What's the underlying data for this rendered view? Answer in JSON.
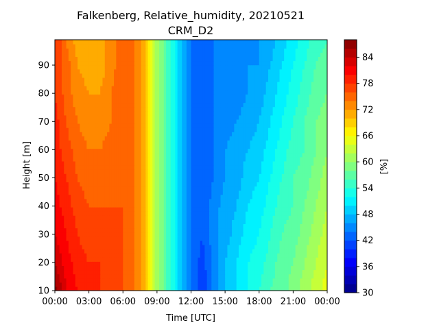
{
  "chart_data": {
    "type": "heatmap",
    "title": "Falkenberg, Relative_humidity, 20210521",
    "subtitle": "CRM_D2",
    "xlabel": "Time [UTC]",
    "ylabel": "Height [m]",
    "colorbar_label": "[%]",
    "colormap": "jet",
    "xlim": [
      0,
      24
    ],
    "ylim": [
      10,
      99
    ],
    "clim": [
      30,
      88
    ],
    "x_ticks": [
      {
        "value": 0,
        "label": "00:00"
      },
      {
        "value": 3,
        "label": "03:00"
      },
      {
        "value": 6,
        "label": "06:00"
      },
      {
        "value": 9,
        "label": "09:00"
      },
      {
        "value": 12,
        "label": "12:00"
      },
      {
        "value": 15,
        "label": "15:00"
      },
      {
        "value": 18,
        "label": "18:00"
      },
      {
        "value": 21,
        "label": "21:00"
      },
      {
        "value": 24,
        "label": "00:00"
      }
    ],
    "y_ticks": [
      {
        "value": 10,
        "label": "10"
      },
      {
        "value": 20,
        "label": "20"
      },
      {
        "value": 30,
        "label": "30"
      },
      {
        "value": 40,
        "label": "40"
      },
      {
        "value": 50,
        "label": "50"
      },
      {
        "value": 60,
        "label": "60"
      },
      {
        "value": 70,
        "label": "70"
      },
      {
        "value": 80,
        "label": "80"
      },
      {
        "value": 90,
        "label": "90"
      }
    ],
    "colorbar_ticks": [
      {
        "value": 30,
        "label": "30"
      },
      {
        "value": 36,
        "label": "36"
      },
      {
        "value": 42,
        "label": "42"
      },
      {
        "value": 48,
        "label": "48"
      },
      {
        "value": 54,
        "label": "54"
      },
      {
        "value": 60,
        "label": "60"
      },
      {
        "value": 66,
        "label": "66"
      },
      {
        "value": 72,
        "label": "72"
      },
      {
        "value": 78,
        "label": "78"
      },
      {
        "value": 84,
        "label": "84"
      }
    ],
    "times": [
      0,
      1,
      2,
      3,
      4,
      5,
      6,
      7,
      8,
      9,
      10,
      11,
      12,
      13,
      14,
      15,
      16,
      17,
      18,
      19,
      20,
      21,
      22,
      23,
      24
    ],
    "heights": [
      10,
      20,
      30,
      40,
      50,
      60,
      70,
      80,
      90,
      99
    ],
    "values": [
      [
        87,
        82,
        80,
        79,
        78,
        76,
        76,
        74,
        70,
        61,
        55,
        49,
        44,
        40,
        45,
        48,
        50,
        52,
        54,
        56,
        57,
        59,
        61,
        63,
        65
      ],
      [
        84,
        81,
        79,
        78,
        78,
        77,
        76,
        74,
        70,
        61,
        55,
        49,
        44,
        41,
        45,
        48,
        50,
        52,
        53,
        55,
        57,
        58,
        60,
        62,
        64
      ],
      [
        82,
        80,
        78,
        77,
        77,
        77,
        76,
        74,
        70,
        61,
        55,
        49,
        44,
        42,
        45,
        47,
        49,
        51,
        52,
        54,
        56,
        57,
        59,
        61,
        63
      ],
      [
        81,
        79,
        77,
        76,
        76,
        76,
        76,
        74,
        70,
        61,
        55,
        49,
        44,
        42,
        45,
        47,
        48,
        50,
        51,
        53,
        55,
        56,
        58,
        60,
        62
      ],
      [
        80,
        78,
        76,
        75,
        75,
        75,
        76,
        74,
        70,
        61,
        55,
        49,
        44,
        43,
        44,
        46,
        47,
        49,
        50,
        52,
        54,
        56,
        57,
        59,
        61
      ],
      [
        79,
        77,
        75,
        74,
        74,
        75,
        76,
        74,
        70,
        61,
        55,
        49,
        44,
        43,
        44,
        46,
        47,
        48,
        49,
        51,
        53,
        55,
        56,
        58,
        60
      ],
      [
        79,
        76,
        74,
        73,
        73,
        74,
        76,
        74,
        70,
        61,
        55,
        49,
        44,
        43,
        44,
        45,
        46,
        47,
        48,
        50,
        52,
        54,
        56,
        58,
        59
      ],
      [
        78,
        75,
        73,
        72,
        72,
        74,
        76,
        74,
        70,
        61,
        55,
        49,
        44,
        43,
        44,
        45,
        45,
        46,
        47,
        49,
        51,
        53,
        55,
        57,
        58
      ],
      [
        78,
        75,
        72,
        71,
        71,
        73,
        76,
        74,
        70,
        61,
        55,
        49,
        44,
        43,
        44,
        44,
        45,
        46,
        46,
        48,
        50,
        52,
        54,
        56,
        57
      ],
      [
        78,
        74,
        71,
        70,
        71,
        73,
        76,
        74,
        70,
        61,
        55,
        49,
        44,
        43,
        44,
        44,
        44,
        45,
        46,
        47,
        49,
        51,
        53,
        55,
        56
      ]
    ]
  }
}
